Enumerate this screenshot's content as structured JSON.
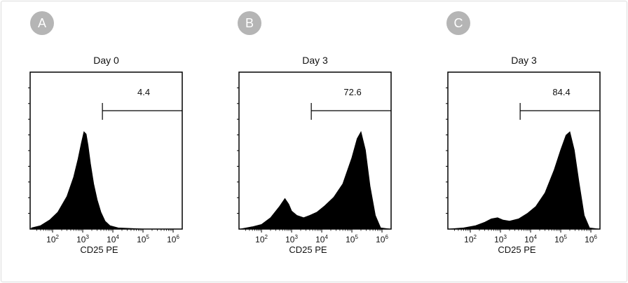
{
  "chart_data": [
    {
      "type": "area",
      "panel_label": "A",
      "title": "Day 0",
      "xlabel": "CD25 PE",
      "x_scale": "log",
      "xlim": [
        20,
        1800000
      ],
      "x_ticks": [
        {
          "base": "10",
          "exp": "2"
        },
        {
          "base": "10",
          "exp": "3"
        },
        {
          "base": "10",
          "exp": "4"
        },
        {
          "base": "10",
          "exp": "5"
        },
        {
          "base": "10",
          "exp": "6"
        }
      ],
      "gate": {
        "from": 4500,
        "to": 1800000,
        "label": "4.4"
      },
      "x": [
        20,
        40,
        80,
        150,
        300,
        500,
        700,
        900,
        1100,
        1300,
        1500,
        1800,
        2300,
        3000,
        4000,
        5500,
        8000,
        15000,
        100000,
        1800000
      ],
      "values": [
        0.01,
        0.03,
        0.08,
        0.15,
        0.29,
        0.46,
        0.62,
        0.76,
        0.86,
        0.84,
        0.74,
        0.58,
        0.4,
        0.26,
        0.15,
        0.07,
        0.03,
        0.01,
        0.0,
        0.0
      ],
      "ylim": [
        0,
        1
      ],
      "color": "#000000"
    },
    {
      "type": "area",
      "panel_label": "B",
      "title": "Day 3",
      "xlabel": "CD25 PE",
      "x_scale": "log",
      "xlim": [
        20,
        1800000
      ],
      "x_ticks": [
        {
          "base": "10",
          "exp": "2"
        },
        {
          "base": "10",
          "exp": "3"
        },
        {
          "base": "10",
          "exp": "4"
        },
        {
          "base": "10",
          "exp": "5"
        },
        {
          "base": "10",
          "exp": "6"
        }
      ],
      "gate": {
        "from": 4500,
        "to": 1800000,
        "label": "72.6"
      },
      "x": [
        20,
        50,
        100,
        200,
        400,
        600,
        800,
        1000,
        1500,
        2500,
        4000,
        7000,
        12000,
        25000,
        50000,
        100000,
        150000,
        200000,
        280000,
        400000,
        600000,
        900000,
        1800000
      ],
      "values": [
        0.0,
        0.02,
        0.04,
        0.1,
        0.2,
        0.27,
        0.22,
        0.16,
        0.12,
        0.1,
        0.12,
        0.15,
        0.2,
        0.28,
        0.4,
        0.63,
        0.8,
        0.86,
        0.7,
        0.38,
        0.12,
        0.01,
        0.0
      ],
      "ylim": [
        0,
        1
      ],
      "color": "#000000"
    },
    {
      "type": "area",
      "panel_label": "C",
      "title": "Day 3",
      "xlabel": "CD25 PE",
      "x_scale": "log",
      "xlim": [
        20,
        1800000
      ],
      "x_ticks": [
        {
          "base": "10",
          "exp": "2"
        },
        {
          "base": "10",
          "exp": "3"
        },
        {
          "base": "10",
          "exp": "4"
        },
        {
          "base": "10",
          "exp": "5"
        },
        {
          "base": "10",
          "exp": "6"
        }
      ],
      "gate": {
        "from": 4500,
        "to": 1800000,
        "label": "84.4"
      },
      "x": [
        20,
        60,
        150,
        300,
        500,
        800,
        1200,
        2000,
        4000,
        8000,
        15000,
        30000,
        60000,
        100000,
        150000,
        200000,
        280000,
        400000,
        600000,
        900000,
        1800000
      ],
      "values": [
        0.0,
        0.01,
        0.03,
        0.06,
        0.09,
        0.1,
        0.08,
        0.07,
        0.09,
        0.14,
        0.2,
        0.32,
        0.52,
        0.7,
        0.83,
        0.86,
        0.7,
        0.42,
        0.12,
        0.01,
        0.0
      ],
      "ylim": [
        0,
        1
      ],
      "color": "#000000"
    }
  ]
}
